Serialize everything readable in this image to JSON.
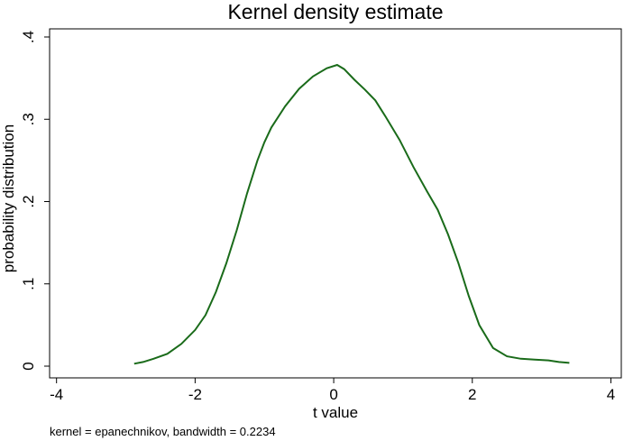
{
  "chart_data": {
    "type": "line",
    "title": "Kernel density estimate",
    "xlabel": "t value",
    "ylabel": "probability distribution",
    "note": "kernel = epanechnikov, bandwidth = 0.2234",
    "xlim": [
      -4.1,
      4.15
    ],
    "ylim": [
      0,
      0.4
    ],
    "xticks": [
      -4,
      -2,
      0,
      2,
      4
    ],
    "xtick_labels": [
      "-4",
      "-2",
      "0",
      "2",
      "4"
    ],
    "yticks": [
      0,
      0.1,
      0.2,
      0.3,
      0.4
    ],
    "ytick_labels": [
      "0",
      ".1",
      ".2",
      ".3",
      ".4"
    ],
    "grid": false,
    "series": [
      {
        "color": "#1a6b1a",
        "x": [
          -2.88,
          -2.75,
          -2.6,
          -2.4,
          -2.2,
          -2.0,
          -1.85,
          -1.7,
          -1.55,
          -1.4,
          -1.25,
          -1.1,
          -1.0,
          -0.9,
          -0.7,
          -0.5,
          -0.3,
          -0.1,
          0.05,
          0.15,
          0.3,
          0.45,
          0.6,
          0.75,
          0.95,
          1.15,
          1.35,
          1.5,
          1.65,
          1.8,
          1.95,
          2.1,
          2.3,
          2.5,
          2.7,
          2.9,
          3.1,
          3.25,
          3.4
        ],
        "y": [
          0.003,
          0.005,
          0.009,
          0.015,
          0.027,
          0.044,
          0.062,
          0.09,
          0.125,
          0.165,
          0.21,
          0.25,
          0.272,
          0.29,
          0.316,
          0.337,
          0.352,
          0.362,
          0.366,
          0.361,
          0.348,
          0.336,
          0.323,
          0.303,
          0.275,
          0.242,
          0.212,
          0.19,
          0.16,
          0.125,
          0.085,
          0.05,
          0.022,
          0.012,
          0.009,
          0.008,
          0.007,
          0.005,
          0.004
        ]
      }
    ]
  }
}
